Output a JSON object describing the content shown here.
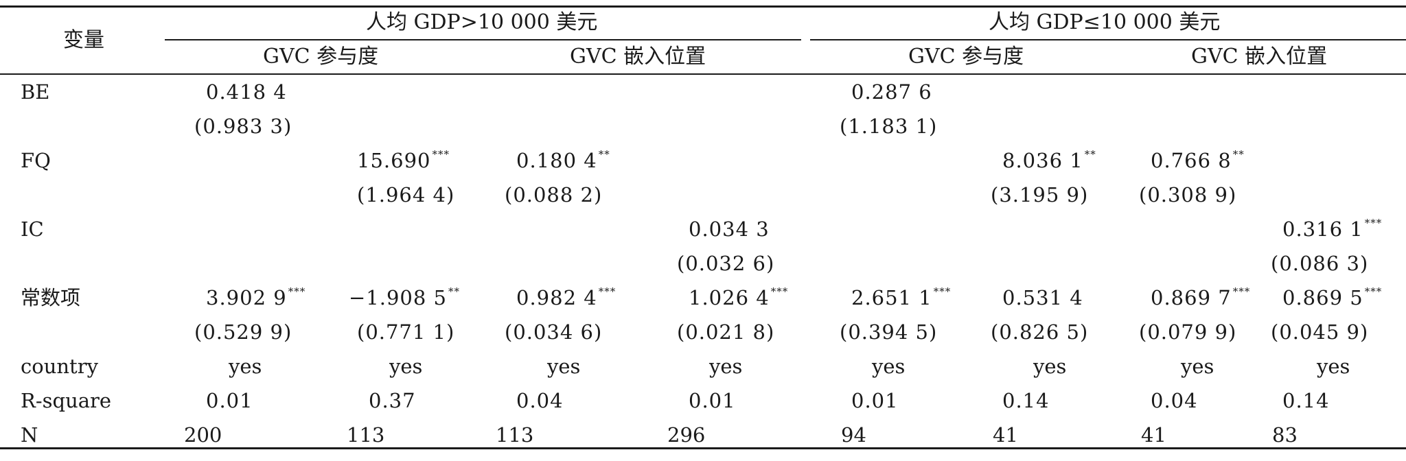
{
  "header": {
    "var_label": "变量",
    "group1": "人均 GDP>10 000 美元",
    "group2": "人均 GDP≤10 000 美元",
    "sub_participation": "GVC 参与度",
    "sub_position": "GVC 嵌入位置"
  },
  "rows": {
    "be": {
      "label": "BE",
      "c1": {
        "coef": "0.418 4",
        "stars": "",
        "se": "(0.983 3)"
      },
      "c5": {
        "coef": "0.287 6",
        "stars": "",
        "se": "(1.183 1)"
      }
    },
    "fq": {
      "label": "FQ",
      "c2": {
        "coef": "15.690",
        "stars": "***",
        "se": "(1.964 4)"
      },
      "c3": {
        "coef": "0.180 4",
        "stars": "**",
        "se": "(0.088 2)"
      },
      "c6": {
        "coef": "8.036 1",
        "stars": "**",
        "se": "(3.195 9)"
      },
      "c7": {
        "coef": "0.766 8",
        "stars": "**",
        "se": "(0.308 9)"
      }
    },
    "ic": {
      "label": "IC",
      "c4": {
        "coef": "0.034 3",
        "stars": "",
        "se": "(0.032 6)"
      },
      "c8": {
        "coef": "0.316 1",
        "stars": "***",
        "se": "(0.086 3)"
      }
    },
    "const": {
      "label": "常数项",
      "c1": {
        "coef": "3.902 9",
        "stars": "***",
        "se": "(0.529 9)"
      },
      "c2": {
        "coef": "−1.908 5",
        "stars": "**",
        "se": "(0.771 1)"
      },
      "c3": {
        "coef": "0.982 4",
        "stars": "***",
        "se": "(0.034 6)"
      },
      "c4": {
        "coef": "1.026 4",
        "stars": "***",
        "se": "(0.021 8)"
      },
      "c5": {
        "coef": "2.651 1",
        "stars": "***",
        "se": "(0.394 5)"
      },
      "c6": {
        "coef": "0.531 4",
        "stars": "",
        "se": "(0.826 5)"
      },
      "c7": {
        "coef": "0.869 7",
        "stars": "***",
        "se": "(0.079 9)"
      },
      "c8": {
        "coef": "0.869 5",
        "stars": "***",
        "se": "(0.045 9)"
      }
    },
    "country": {
      "label": "country",
      "values": [
        "yes",
        "yes",
        "yes",
        "yes",
        "yes",
        "yes",
        "yes",
        "yes"
      ]
    },
    "rsq": {
      "label": "R-square",
      "values": [
        "0.01",
        "0.37",
        "0.04",
        "0.01",
        "0.01",
        "0.14",
        "0.04",
        "0.14"
      ]
    },
    "n": {
      "label": "N",
      "values": [
        "200",
        "113",
        "113",
        "296",
        "94",
        "41",
        "41",
        "83"
      ]
    }
  }
}
